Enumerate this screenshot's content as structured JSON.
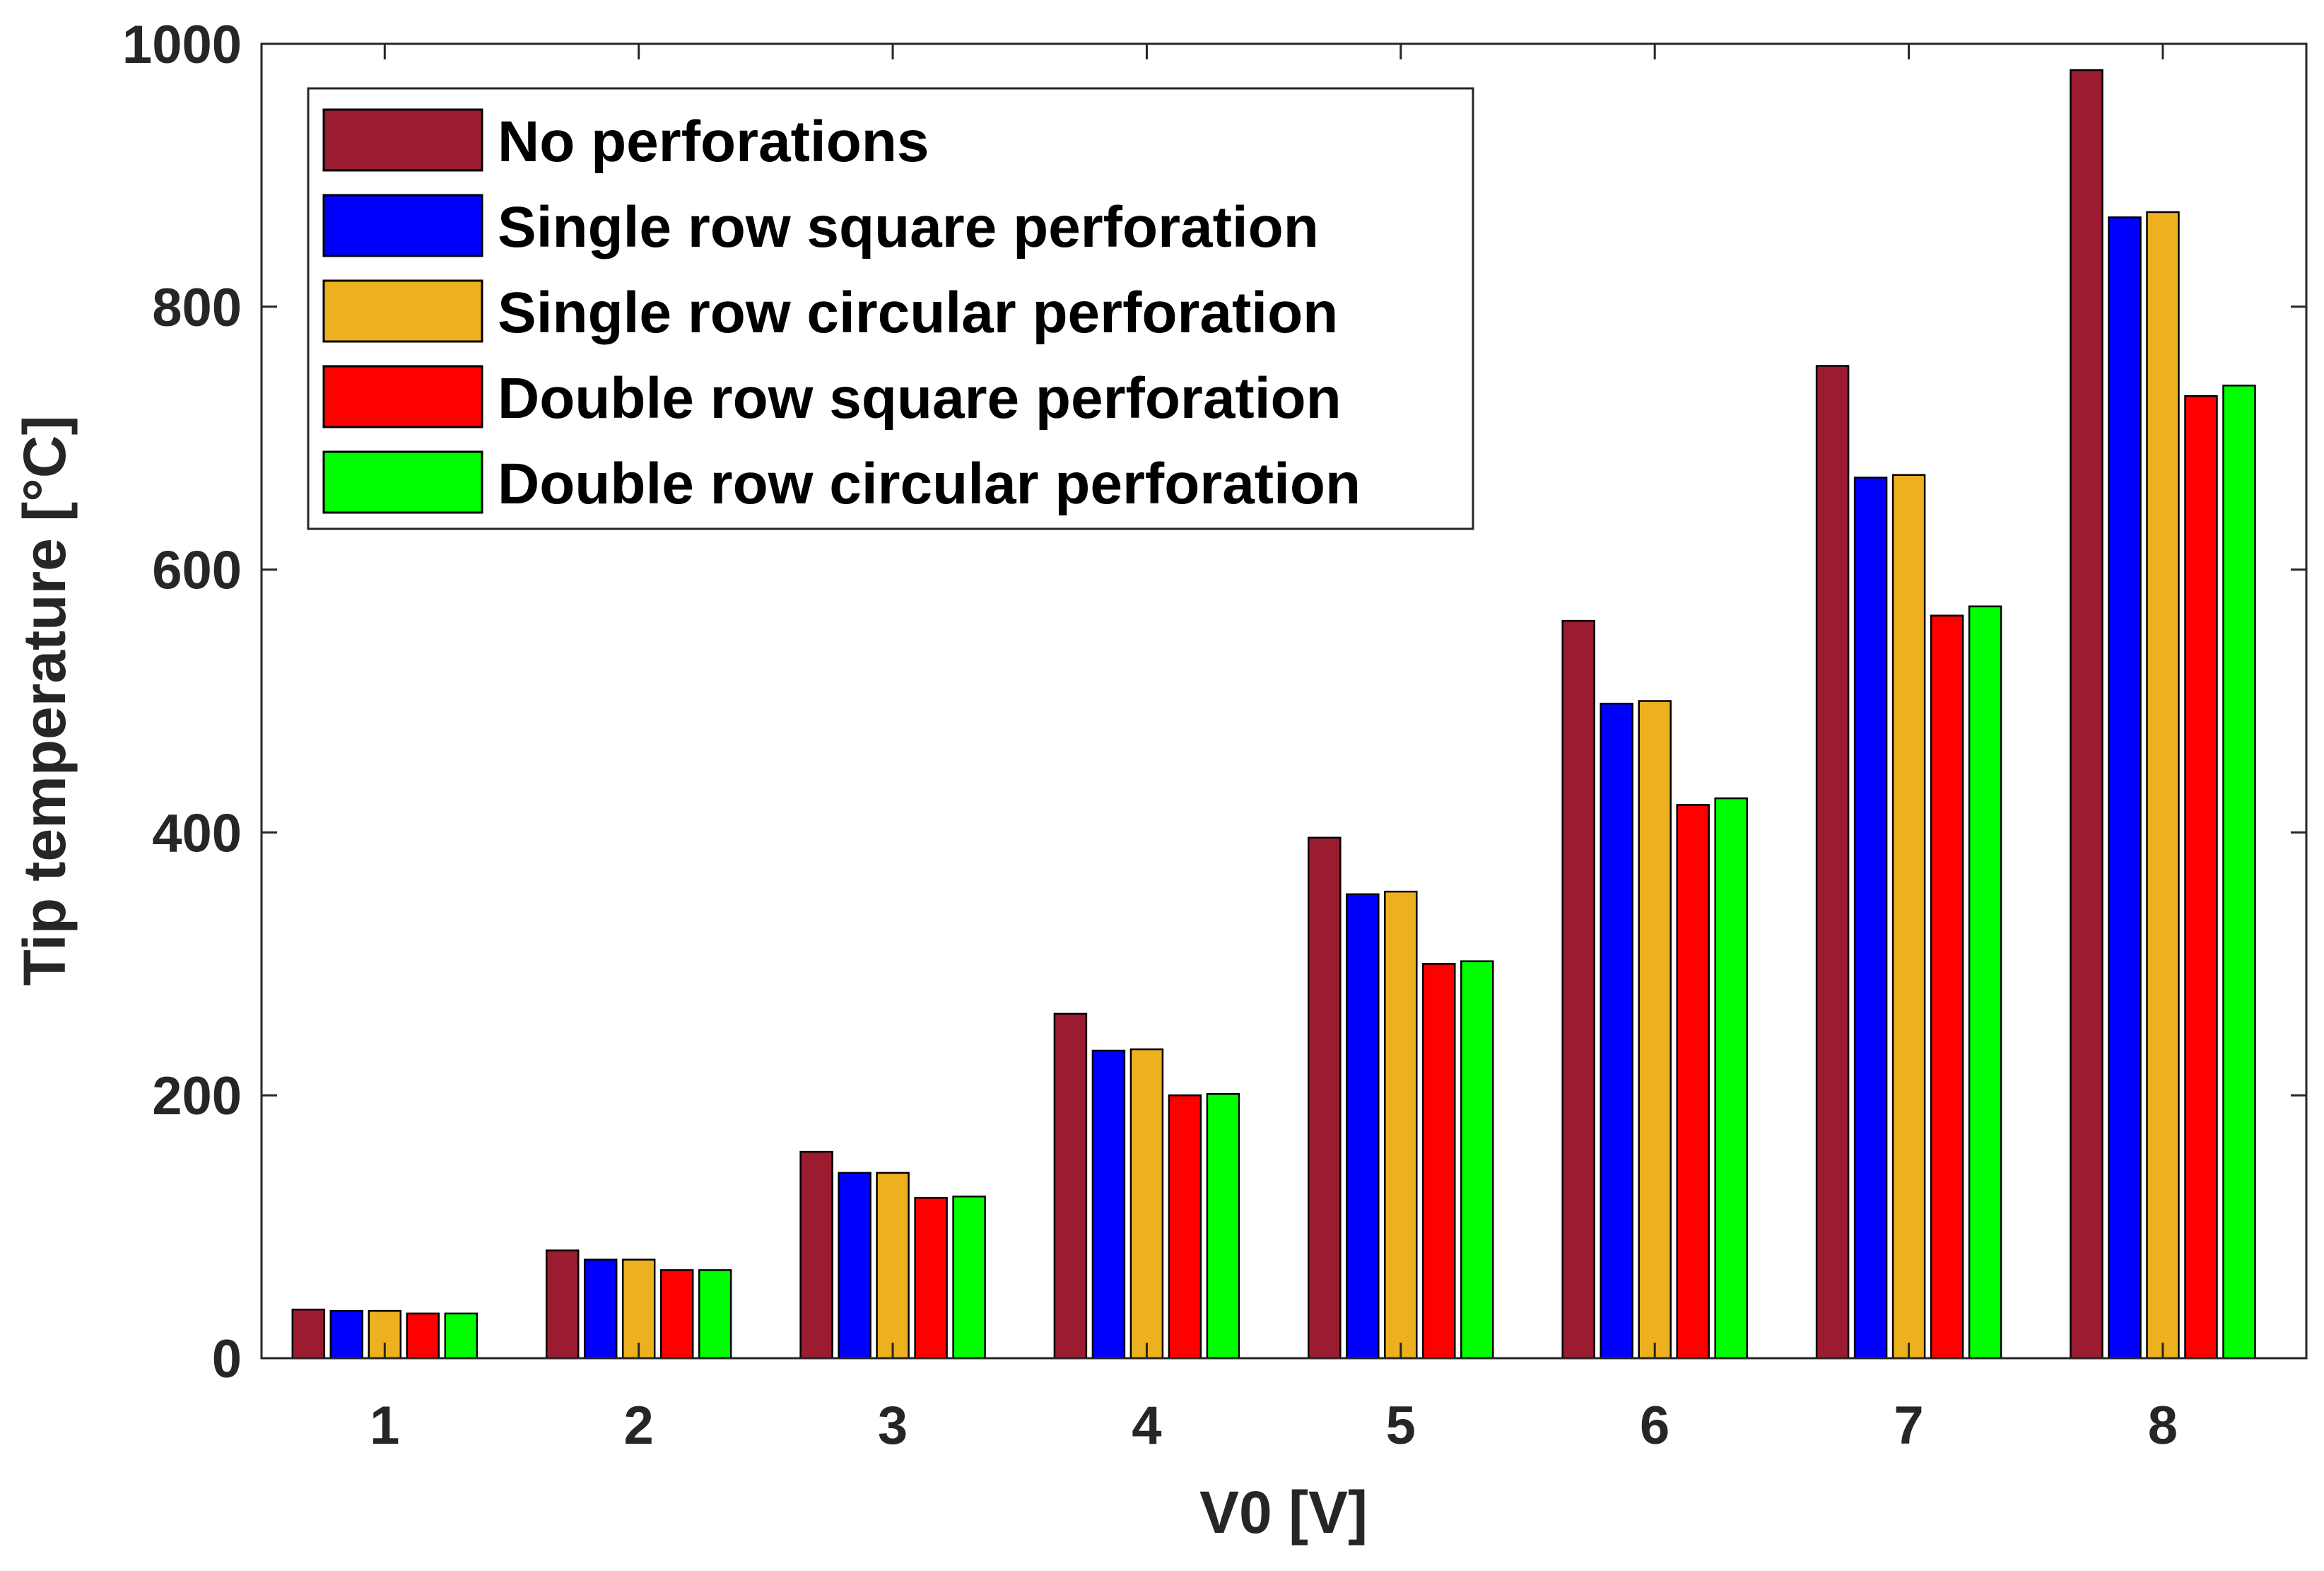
{
  "chart_data": {
    "type": "bar",
    "title": "",
    "xlabel": "V0 [V]",
    "ylabel": "Tip temperature [°C]",
    "ylim": [
      0,
      1000
    ],
    "yticks": [
      "0",
      "200",
      "400",
      "600",
      "800",
      "1000"
    ],
    "categories": [
      "1",
      "2",
      "3",
      "4",
      "5",
      "6",
      "7",
      "8"
    ],
    "grid": false,
    "legend_position": "top-left",
    "series": [
      {
        "name": "No perforations",
        "color": "#9b1b30",
        "values": [
          37,
          82,
          157,
          262,
          396,
          561,
          755,
          980
        ]
      },
      {
        "name": "Single row square perforation",
        "color": "#0000ff",
        "values": [
          36,
          75,
          141,
          234,
          353,
          498,
          670,
          868
        ]
      },
      {
        "name": "Single row circular perforation",
        "color": "#edb120",
        "values": [
          36,
          75,
          141,
          235,
          355,
          500,
          672,
          872
        ]
      },
      {
        "name": "Double row square perforation",
        "color": "#ff0000",
        "values": [
          34,
          67,
          122,
          200,
          300,
          421,
          565,
          732
        ]
      },
      {
        "name": "Double row circular perforation",
        "color": "#00ff00",
        "values": [
          34,
          67,
          123,
          201,
          302,
          426,
          572,
          740
        ]
      }
    ]
  }
}
